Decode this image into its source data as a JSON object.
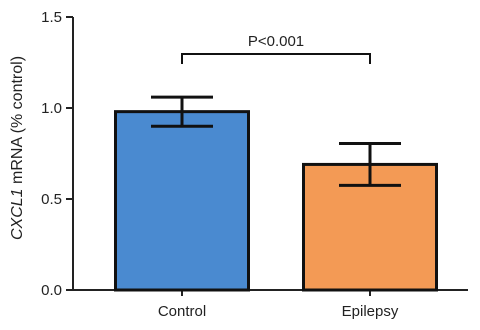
{
  "chart_data": {
    "type": "bar",
    "categories": [
      "Control",
      "Epilepsy"
    ],
    "values": [
      0.98,
      0.69
    ],
    "error": [
      0.08,
      0.115
    ],
    "colors": [
      "#4a8ad0",
      "#f39a55"
    ],
    "ylabel_italic": "CXCL1",
    "ylabel_rest": " mRNA (% control)",
    "ylim": [
      0,
      1.5
    ],
    "yticks": [
      "0.0",
      "0.5",
      "1.0",
      "1.5"
    ],
    "annotation": "P<0.001",
    "grid": false
  }
}
